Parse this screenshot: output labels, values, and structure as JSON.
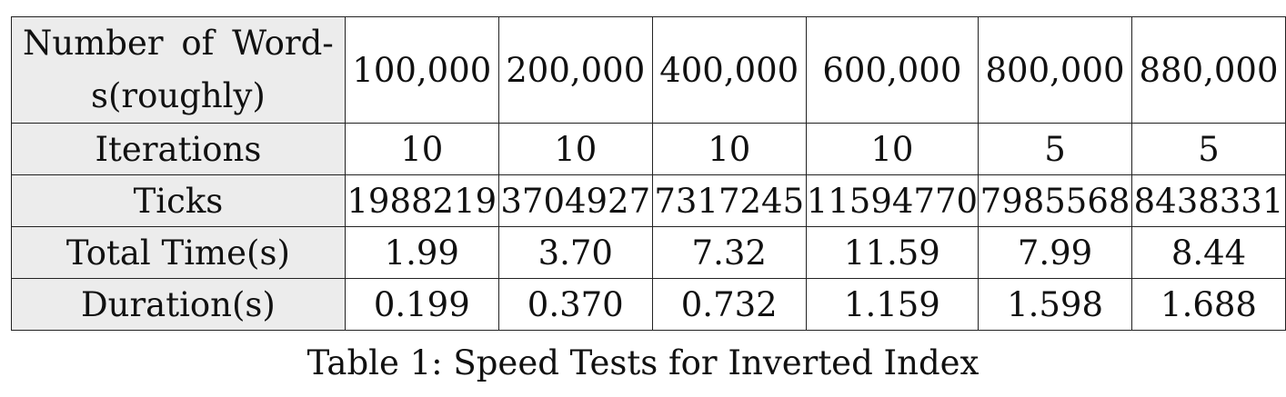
{
  "table": {
    "header_label_line1": "Number of Word-",
    "header_label_line2": "s(roughly)",
    "columns": [
      "100,000",
      "200,000",
      "400,000",
      "600,000",
      "800,000",
      "880,000"
    ],
    "rows": [
      {
        "label": "Iterations",
        "values": [
          "10",
          "10",
          "10",
          "10",
          "5",
          "5"
        ]
      },
      {
        "label": "Ticks",
        "values": [
          "1988219",
          "3704927",
          "7317245",
          "11594770",
          "7985568",
          "8438331"
        ]
      },
      {
        "label": "Total Time(s)",
        "values": [
          "1.99",
          "3.70",
          "7.32",
          "11.59",
          "7.99",
          "8.44"
        ]
      },
      {
        "label": "Duration(s)",
        "values": [
          "0.199",
          "0.370",
          "0.732",
          "1.159",
          "1.598",
          "1.688"
        ]
      }
    ]
  },
  "caption": "Table 1: Speed Tests for Inverted Index"
}
